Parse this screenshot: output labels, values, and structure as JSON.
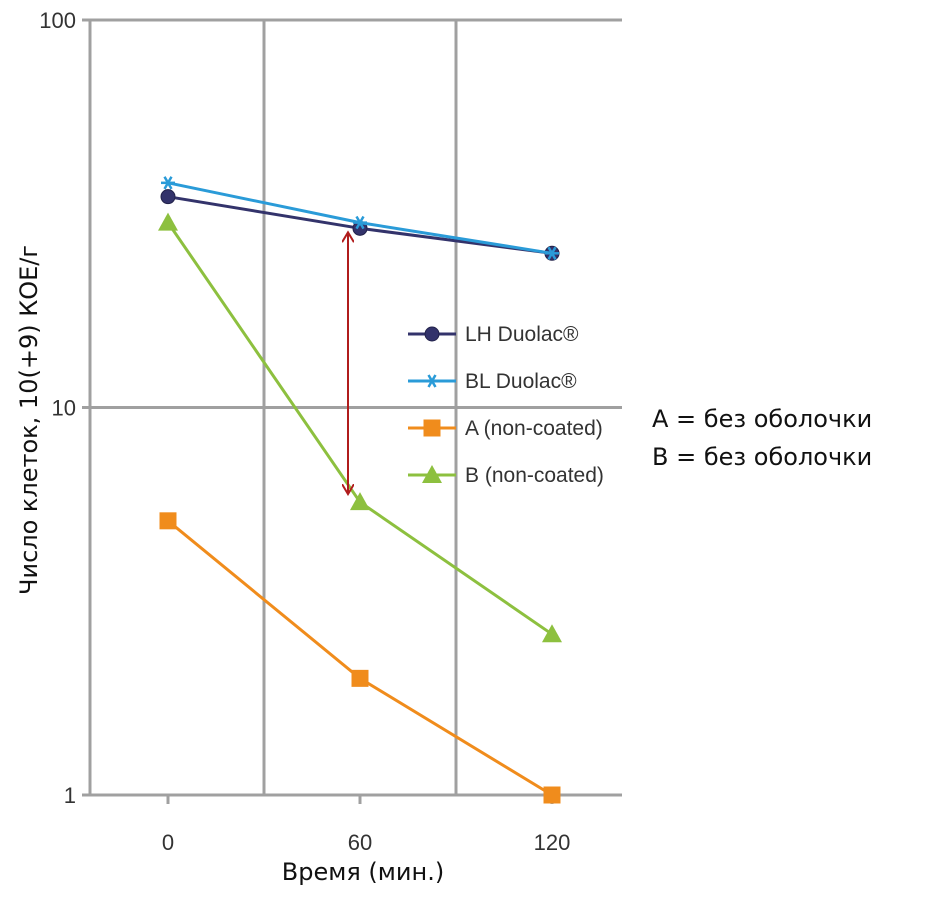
{
  "chart_data": {
    "type": "line",
    "title": "",
    "xlabel": "Время (мин.)",
    "ylabel": "Число клеток, 10(+9) КОЕ/г",
    "x": [
      0,
      60,
      120
    ],
    "x_ticks": [
      "0",
      "60",
      "120"
    ],
    "y_scale": "log",
    "ylim": [
      1,
      100
    ],
    "y_ticks": [
      "1",
      "10",
      "100"
    ],
    "grid": true,
    "legend_position": "right",
    "series": [
      {
        "name": "LH Duolac®",
        "values": [
          35,
          29,
          25
        ],
        "color": "#33336b",
        "marker": "circle"
      },
      {
        "name": "BL Duolac®",
        "values": [
          38,
          30,
          25
        ],
        "color": "#2a9bd8",
        "marker": "asterisk"
      },
      {
        "name": "A (non-coated)",
        "values": [
          5.1,
          2.0,
          1.0
        ],
        "color": "#f08c1c",
        "marker": "square"
      },
      {
        "name": "B (non-coated)",
        "values": [
          30,
          5.7,
          2.6
        ],
        "color": "#8dc03f",
        "marker": "triangle"
      }
    ],
    "annotations": [
      {
        "type": "double-arrow",
        "x": 60,
        "y_from": 29,
        "y_to": 5.7,
        "color": "#b01c1c"
      }
    ],
    "notes": [
      "A = без оболочки",
      "B = без оболочки"
    ]
  }
}
